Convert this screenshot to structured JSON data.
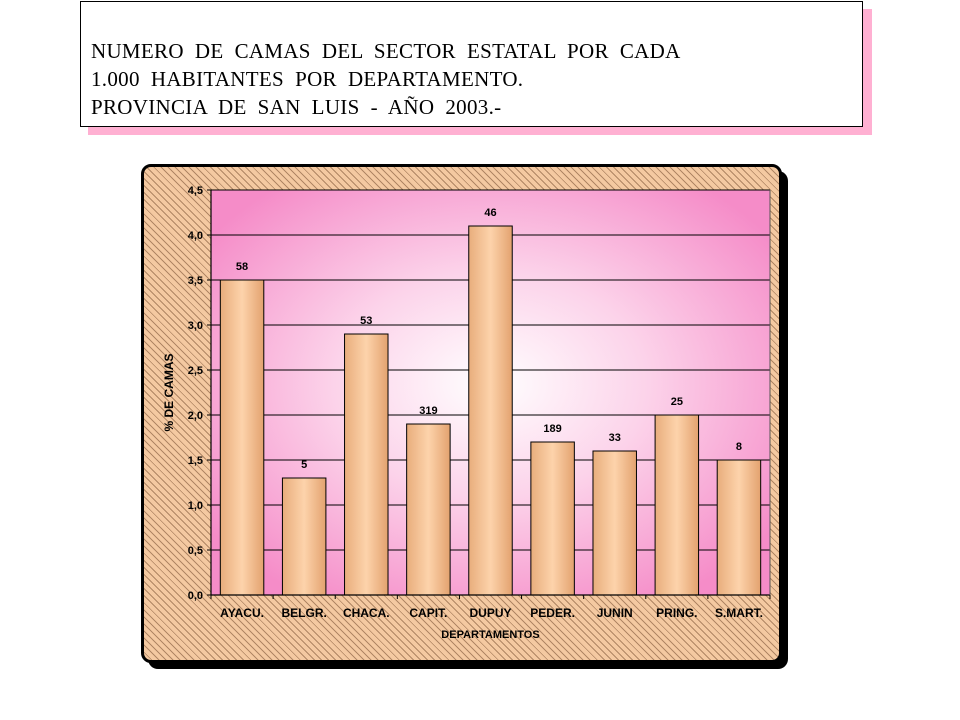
{
  "title": {
    "line1": "NUMERO  DE  CAMAS  DEL  SECTOR  ESTATAL  POR  CADA",
    "line2": "1.000  HABITANTES  POR  DEPARTAMENTO.",
    "line3": "PROVINCIA  DE  SAN  LUIS  -  AÑO  2003.-"
  },
  "colors": {
    "bar_fill": "#f6c598",
    "plot_bg_edge": "#f58cc8",
    "plot_bg_center": "#ffffff",
    "title_shadow": "#ffb0d2"
  },
  "chart_data": {
    "type": "bar",
    "title": "",
    "xlabel": "DEPARTAMENTOS",
    "ylabel": "% DE CAMAS",
    "ylim": [
      0,
      4.5
    ],
    "yticks": [
      "0,0",
      "0,5",
      "1,0",
      "1,5",
      "2,0",
      "2,5",
      "3,0",
      "3,5",
      "4,0",
      "4,5"
    ],
    "grid": true,
    "categories": [
      "AYACU.",
      "BELGR.",
      "CHACA.",
      "CAPIT.",
      "DUPUY",
      "PEDER.",
      "JUNIN",
      "PRING.",
      "S.MART."
    ],
    "values": [
      3.5,
      1.3,
      2.9,
      1.9,
      4.1,
      1.7,
      1.6,
      2.0,
      1.5
    ],
    "data_labels": [
      "58",
      "5",
      "53",
      "319",
      "46",
      "189",
      "33",
      "25",
      "8"
    ]
  }
}
